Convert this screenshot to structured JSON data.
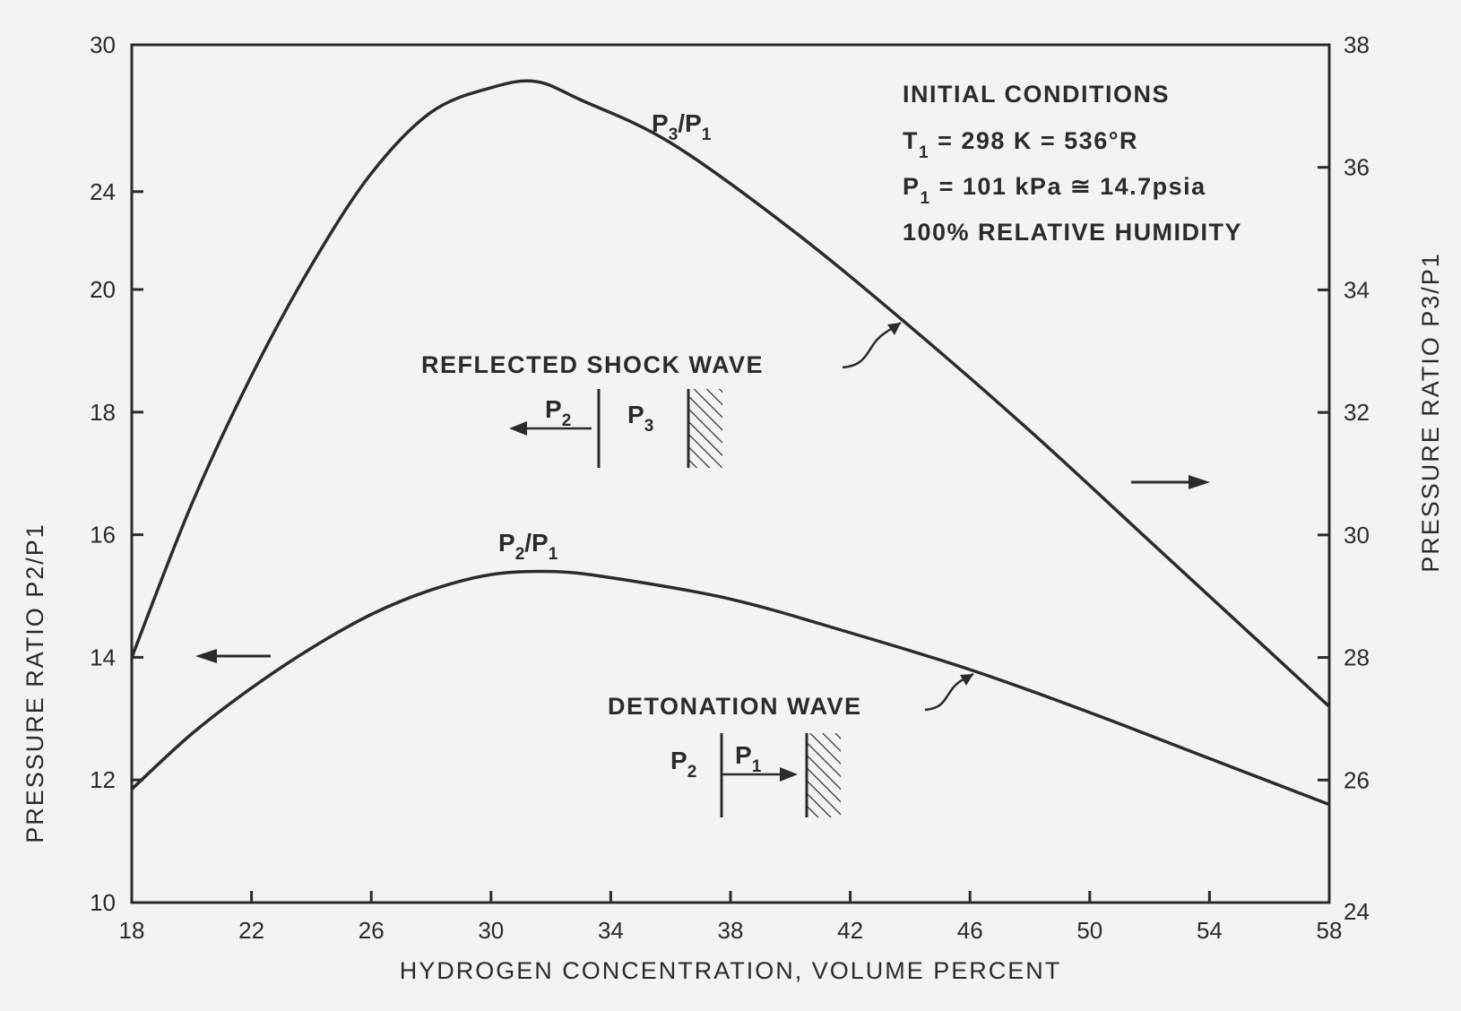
{
  "chart_data": {
    "type": "line",
    "xlabel": "HYDROGEN CONCENTRATION, VOLUME PERCENT",
    "ylabel_left": "PRESSURE RATIO P2/P1",
    "ylabel_right": "PRESSURE RATIO P3/P1",
    "xlim": [
      18,
      58
    ],
    "xticks": [
      "18",
      "22",
      "26",
      "30",
      "34",
      "38",
      "42",
      "46",
      "50",
      "54",
      "58"
    ],
    "ylim_left": [
      10,
      30
    ],
    "yticks_left": [
      "10",
      "12",
      "14",
      "16",
      "18",
      "20",
      "24",
      "30"
    ],
    "ylim_right": [
      24,
      38
    ],
    "yticks_right": [
      "24",
      "26",
      "28",
      "30",
      "32",
      "34",
      "36",
      "38"
    ],
    "grid": false,
    "series": [
      {
        "name": "P3/P1",
        "axis": "right",
        "x": [
          18,
          20,
          22,
          24,
          26,
          28,
          30,
          31.5,
          33,
          36,
          40,
          44,
          48,
          52,
          56,
          58
        ],
        "y": [
          28.0,
          30.5,
          32.6,
          34.4,
          35.9,
          36.9,
          37.3,
          37.4,
          37.1,
          36.4,
          35.0,
          33.4,
          31.7,
          29.9,
          28.1,
          27.2
        ]
      },
      {
        "name": "P2/P1",
        "axis": "left",
        "x": [
          18,
          20,
          22,
          24,
          26,
          28,
          30,
          32,
          34,
          38,
          42,
          46,
          50,
          54,
          58
        ],
        "y": [
          11.85,
          12.75,
          13.5,
          14.15,
          14.7,
          15.1,
          15.35,
          15.4,
          15.3,
          14.95,
          14.4,
          13.8,
          13.1,
          12.35,
          11.6
        ]
      }
    ],
    "annotations": {
      "p3_label": {
        "main": "P",
        "sub1": "3",
        "mid": "/P",
        "sub2": "1"
      },
      "p2_label": {
        "main": "P",
        "sub1": "2",
        "mid": "/P",
        "sub2": "1"
      },
      "initial_conditions_title": "INITIAL CONDITIONS",
      "t1_line": {
        "pre": "T",
        "sub": "1",
        "post": " = 298  K = 536°R"
      },
      "p1_line": {
        "pre": "P",
        "sub": "1",
        "post": " = 101  kPa ≅ 14.7psia"
      },
      "humidity": "100% RELATIVE HUMIDITY",
      "reflected": "REFLECTED SHOCK WAVE",
      "detonation": "DETONATION WAVE",
      "reflected_diagram": {
        "left": "P",
        "left_sub": "2",
        "right": "P",
        "right_sub": "3"
      },
      "detonation_diagram": {
        "left": "P",
        "left_sub": "2",
        "right": "P",
        "right_sub": "1"
      }
    }
  }
}
